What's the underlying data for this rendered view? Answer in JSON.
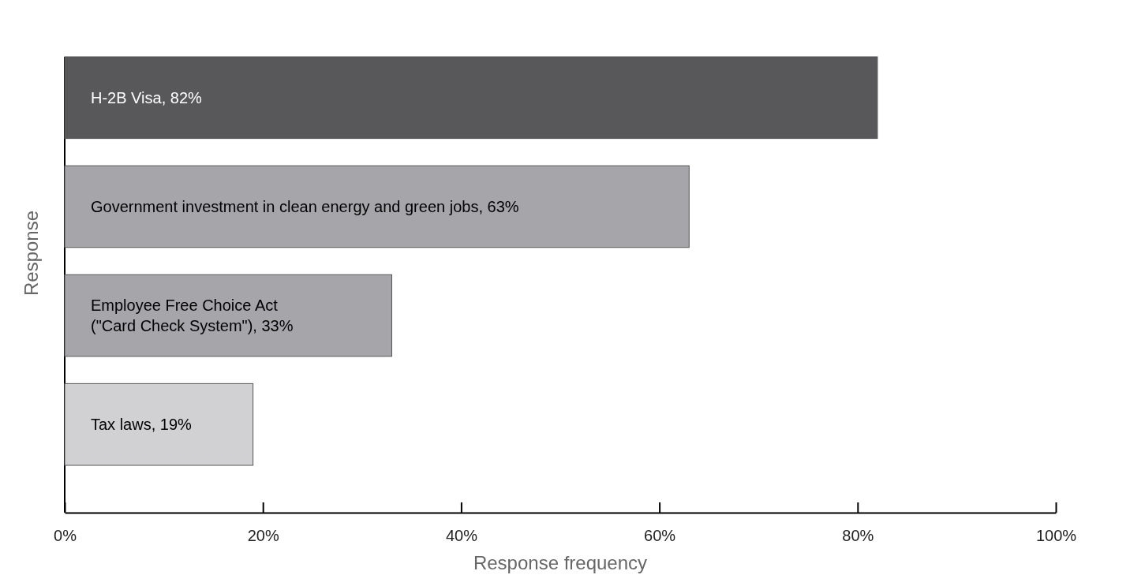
{
  "chart_data": {
    "type": "bar",
    "orientation": "horizontal",
    "xlabel": "Response frequency",
    "ylabel": "Response",
    "categories": [
      null,
      null,
      null,
      null
    ],
    "values": [
      82,
      63,
      33,
      19
    ],
    "colors": [
      "#58585a",
      "#a6a5a9",
      "#a6a5a9",
      "#d1d1d3"
    ],
    "value_labels": [
      "H-2B Visa, 82%",
      "Government investment in clean energy and green jobs, 63%",
      "Employee Free Choice Act (\"Card Check System\"), 33%",
      "Tax laws, 19%"
    ],
    "xlim": [
      0,
      100
    ],
    "xticks": [
      {
        "value": 0,
        "label": "0%"
      },
      {
        "value": 20,
        "label": "20%"
      },
      {
        "value": 40,
        "label": "40%"
      },
      {
        "value": 60,
        "label": "60%"
      },
      {
        "value": 80,
        "label": "80%"
      },
      {
        "value": 100,
        "label": "100%"
      }
    ],
    "grid": false
  }
}
